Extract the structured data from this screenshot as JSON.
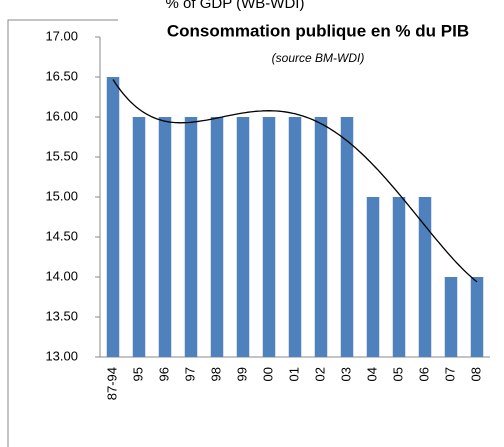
{
  "top_caption": "% of GDP (WB-WDI)",
  "chart_data": {
    "type": "bar",
    "title": "Consommation publique en % du PIB",
    "subtitle": "(source BM-WDI)",
    "categories": [
      "87-94",
      "95",
      "96",
      "97",
      "98",
      "99",
      "00",
      "01",
      "02",
      "03",
      "04",
      "05",
      "06",
      "07",
      "08"
    ],
    "values": [
      16.5,
      16,
      16,
      16,
      16,
      16,
      16,
      16,
      16,
      16,
      15,
      15,
      15,
      14,
      14
    ],
    "color": "#4f81bd",
    "ylim": [
      13,
      17
    ],
    "yticks": [
      {
        "value": 13,
        "label": "13.00"
      },
      {
        "value": 13.5,
        "label": "13.50"
      },
      {
        "value": 14,
        "label": "14.00"
      },
      {
        "value": 14.5,
        "label": "14.50"
      },
      {
        "value": 15,
        "label": "15.00"
      },
      {
        "value": 15.5,
        "label": "15.50"
      },
      {
        "value": 16,
        "label": "16.00"
      },
      {
        "value": 16.5,
        "label": "16.50"
      },
      {
        "value": 17,
        "label": "17.00"
      }
    ],
    "grid": false,
    "trendline": {
      "type": "polynomial",
      "order": 4,
      "color": "#000000"
    }
  }
}
